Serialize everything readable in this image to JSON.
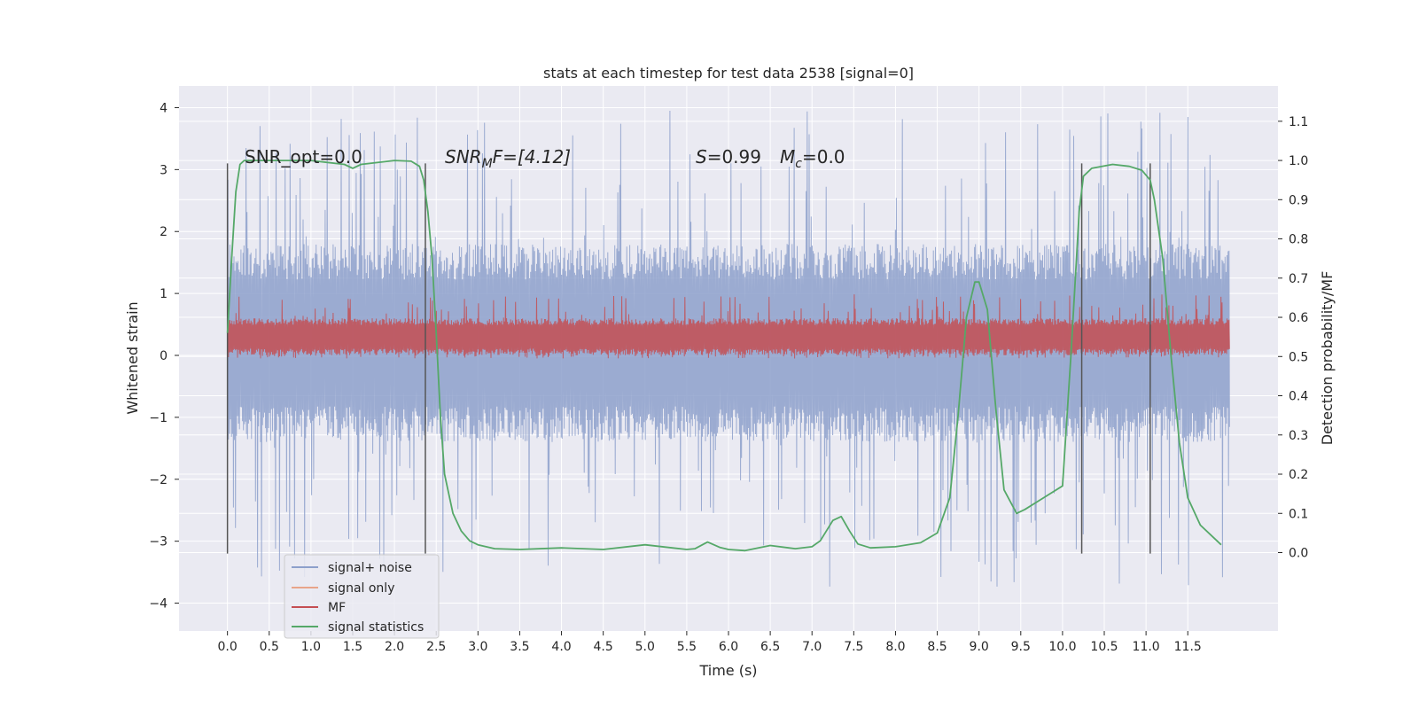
{
  "chart_data": {
    "type": "line",
    "title": "stats at each timestep for test data 2538 [signal=0]",
    "xlabel": "Time (s)",
    "ylabel": "Whitened strain",
    "ylabel_right": "Detection probability/MF",
    "xlim": [
      -0.58,
      12.58
    ],
    "ylim": [
      -4.45,
      4.35
    ],
    "ylim_right": [
      -0.2,
      1.19
    ],
    "x_ticks": [
      "0.0",
      "0.5",
      "1.0",
      "1.5",
      "2.0",
      "2.5",
      "3.0",
      "3.5",
      "4.0",
      "4.5",
      "5.0",
      "5.5",
      "6.0",
      "6.5",
      "7.0",
      "7.5",
      "8.0",
      "8.5",
      "9.0",
      "9.5",
      "10.0",
      "10.5",
      "11.0",
      "11.5"
    ],
    "y_ticks": [
      "4",
      "3",
      "2",
      "1",
      "0",
      "−1",
      "−2",
      "−3",
      "−4"
    ],
    "y_ticks_right": [
      "1.1",
      "1.0",
      "0.9",
      "0.8",
      "0.7",
      "0.6",
      "0.5",
      "0.4",
      "0.3",
      "0.2",
      "0.1",
      "0.0"
    ],
    "grid": true,
    "legend_position": "lower-left",
    "annotations": {
      "snr_opt": "SNR_opt=0.0",
      "snr_mf_sym": "SNR",
      "snr_mf_sub": "M",
      "snr_mf_rest": "F=[4.12]",
      "s_sym": "S",
      "s_val": "=0.99",
      "mc_sym": "M",
      "mc_sub": "c",
      "mc_val": "=0.0"
    },
    "vertical_markers": [
      0.0,
      2.37,
      10.23,
      11.05
    ],
    "series": [
      {
        "name": "signal+ noise",
        "color": "#8da0cb",
        "noise_envelope": {
          "x_start": 0.0,
          "x_end": 12.0,
          "typical_min": -1.4,
          "typical_max": 1.8,
          "extreme_min": -3.8,
          "extreme_max": 3.95
        }
      },
      {
        "name": "signal only",
        "color": "#e8a48a",
        "values": []
      },
      {
        "name": "MF",
        "color": "#c44e52",
        "noise_envelope": {
          "x_start": 0.0,
          "x_end": 12.0,
          "typical_min": 0.0,
          "typical_max": 0.6,
          "extreme_min": -0.05,
          "extreme_max": 1.0
        }
      },
      {
        "name": "signal statistics",
        "color": "#55a868",
        "axis": "right",
        "x": [
          0.0,
          0.05,
          0.1,
          0.15,
          0.2,
          0.3,
          0.5,
          1.0,
          1.2,
          1.4,
          1.5,
          1.6,
          2.0,
          2.2,
          2.3,
          2.35,
          2.4,
          2.45,
          2.5,
          2.55,
          2.6,
          2.7,
          2.8,
          2.9,
          3.0,
          3.2,
          3.5,
          4.0,
          4.5,
          5.0,
          5.5,
          5.6,
          5.75,
          5.9,
          6.0,
          6.2,
          6.5,
          6.8,
          7.0,
          7.1,
          7.25,
          7.35,
          7.45,
          7.55,
          7.7,
          8.0,
          8.3,
          8.5,
          8.65,
          8.75,
          8.85,
          8.95,
          9.0,
          9.1,
          9.2,
          9.3,
          9.45,
          9.55,
          9.7,
          9.85,
          10.0,
          10.1,
          10.2,
          10.25,
          10.35,
          10.6,
          10.8,
          10.95,
          11.05,
          11.1,
          11.2,
          11.3,
          11.4,
          11.5,
          11.65,
          11.8,
          11.9
        ],
        "values": [
          0.56,
          0.75,
          0.92,
          0.99,
          1.0,
          1.0,
          1.0,
          1.0,
          0.995,
          0.99,
          0.98,
          0.99,
          1.0,
          0.998,
          0.985,
          0.95,
          0.87,
          0.75,
          0.56,
          0.35,
          0.2,
          0.1,
          0.055,
          0.03,
          0.02,
          0.01,
          0.008,
          0.012,
          0.008,
          0.02,
          0.008,
          0.01,
          0.027,
          0.013,
          0.008,
          0.005,
          0.018,
          0.01,
          0.015,
          0.03,
          0.082,
          0.092,
          0.055,
          0.022,
          0.012,
          0.015,
          0.025,
          0.05,
          0.14,
          0.35,
          0.6,
          0.69,
          0.69,
          0.62,
          0.37,
          0.16,
          0.1,
          0.11,
          0.13,
          0.15,
          0.17,
          0.5,
          0.87,
          0.96,
          0.98,
          0.99,
          0.985,
          0.975,
          0.95,
          0.9,
          0.75,
          0.5,
          0.28,
          0.14,
          0.07,
          0.04,
          0.02
        ]
      }
    ]
  }
}
